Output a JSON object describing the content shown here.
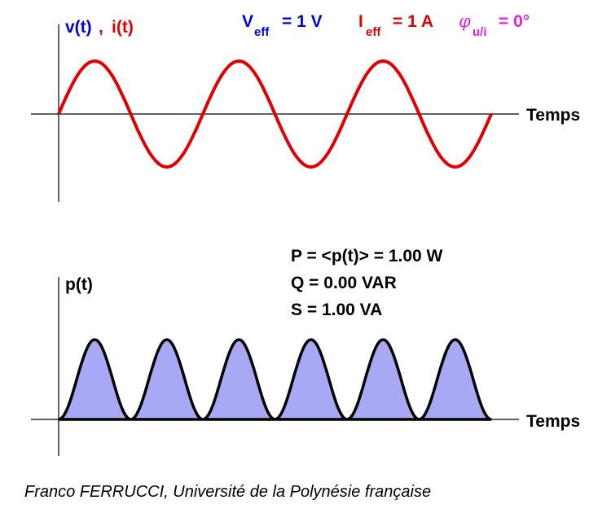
{
  "top_plot": {
    "y_label_v": "v(t)",
    "separator": ",",
    "y_label_i": "i(t)",
    "v_symbol": "V",
    "v_sub": "eff",
    "v_value": "= 1 V",
    "i_symbol": "I",
    "i_sub": "eff",
    "i_value": "= 1 A",
    "phi_symbol": "φ",
    "phi_sub": "u/i",
    "phi_value": "= 0°",
    "x_label": "Temps"
  },
  "bottom_plot": {
    "y_label": "p(t)",
    "lines": [
      "P = <p(t)> = 1.00 W",
      "Q = 0.00 VAR",
      "S = 1.00 VA"
    ],
    "x_label": "Temps"
  },
  "footer": "Franco FERRUCCI, Université de la Polynésie française"
}
